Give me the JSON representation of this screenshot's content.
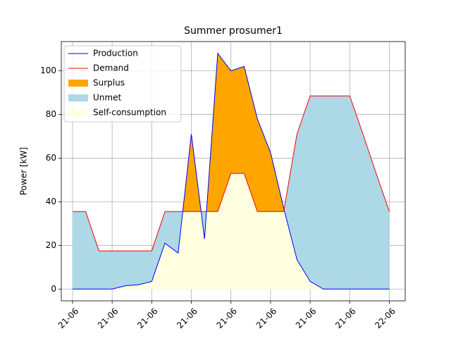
{
  "chart_data": {
    "type": "line",
    "title": "Summer prosumer1",
    "y_label": "Power [kW]",
    "x": [
      0,
      1,
      2,
      3,
      4,
      5,
      6,
      7,
      8,
      9,
      10,
      11,
      12,
      13,
      14,
      15,
      16,
      17,
      18,
      19,
      20,
      21,
      22,
      23,
      24
    ],
    "series": [
      {
        "name": "Production",
        "color": "#0000ff",
        "values": [
          0,
          0,
          0,
          0,
          1.5,
          2,
          3.5,
          21,
          16.5,
          71,
          23,
          108,
          100,
          102,
          78,
          62.5,
          37,
          13.5,
          3.5,
          0,
          0,
          0,
          0,
          0,
          0
        ]
      },
      {
        "name": "Demand",
        "color": "#ff0000",
        "values": [
          35.5,
          35.5,
          17.5,
          17.5,
          17.5,
          17.5,
          17.5,
          35.5,
          35.5,
          35.5,
          35.5,
          35.5,
          53,
          53,
          35.5,
          35.5,
          35.5,
          71,
          88.5,
          88.5,
          88.5,
          88.5,
          71,
          53,
          35.5
        ]
      }
    ],
    "areas": [
      {
        "name": "Surplus",
        "color": "#ffa500"
      },
      {
        "name": "Unmet",
        "color": "#add8e6"
      },
      {
        "name": "Self-consumption",
        "color": "#ffffe0"
      }
    ],
    "xlim": [
      -0.85,
      25.2
    ],
    "ylim": [
      -5.4,
      113.4
    ],
    "xticks": [
      {
        "value": 0,
        "label": "21-06"
      },
      {
        "value": 3,
        "label": "21-06"
      },
      {
        "value": 6,
        "label": "21-06"
      },
      {
        "value": 9,
        "label": "21-06"
      },
      {
        "value": 12,
        "label": "21-06"
      },
      {
        "value": 15,
        "label": "21-06"
      },
      {
        "value": 18,
        "label": "21-06"
      },
      {
        "value": 21,
        "label": "21-06"
      },
      {
        "value": 24,
        "label": "22-06"
      }
    ],
    "yticks": [
      0,
      20,
      40,
      60,
      80,
      100
    ],
    "grid": true,
    "legend_position": "upper-left"
  }
}
